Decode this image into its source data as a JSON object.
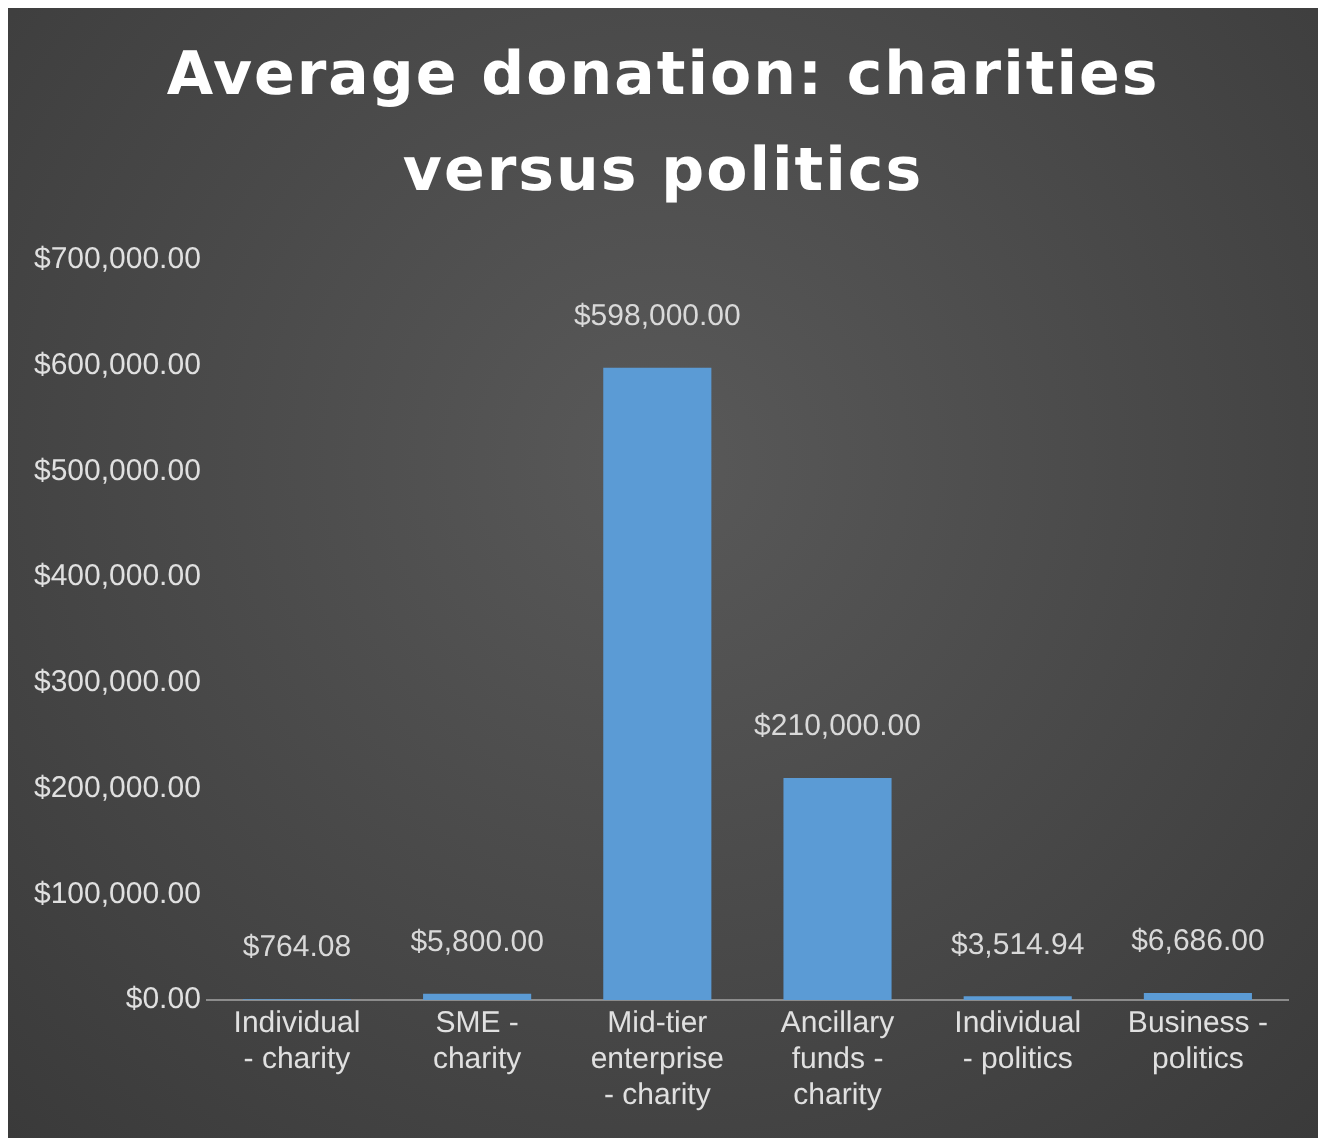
{
  "chart_data": {
    "type": "bar",
    "title": "Average donation:  charities versus politics",
    "categories": [
      "Individual - charity",
      "SME - charity",
      "Mid-tier enterprise - charity",
      "Ancillary funds - charity",
      "Individual - politics",
      "Business - politics"
    ],
    "values": [
      764.08,
      5800,
      598000,
      210000,
      3514.94,
      6686
    ],
    "value_labels": [
      "$764.08",
      "$5,800.00",
      "$598,000.00",
      "$210,000.00",
      "$3,514.94",
      "$6,686.00"
    ],
    "color": "#5b9bd5",
    "ylim": [
      0,
      700000
    ],
    "yticks": [
      {
        "value": 0,
        "label": "$0.00"
      },
      {
        "value": 100000,
        "label": "$100,000.00"
      },
      {
        "value": 200000,
        "label": "$200,000.00"
      },
      {
        "value": 300000,
        "label": "$300,000.00"
      },
      {
        "value": 400000,
        "label": "$400,000.00"
      },
      {
        "value": 500000,
        "label": "$500,000.00"
      },
      {
        "value": 600000,
        "label": "$600,000.00"
      },
      {
        "value": 700000,
        "label": "$700,000.00"
      }
    ],
    "grid": false,
    "legend": false
  }
}
